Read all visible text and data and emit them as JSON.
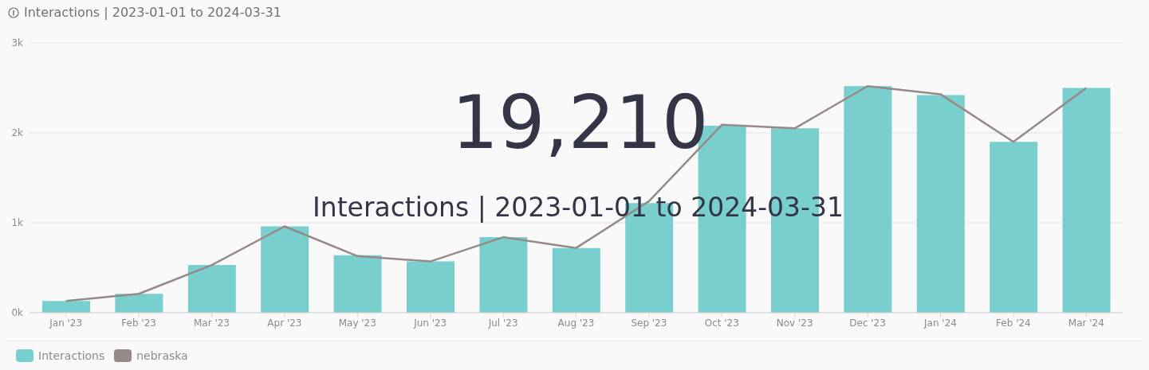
{
  "chart_data": {
    "type": "bar",
    "title": "Interactions | 2023-01-01 to 2024-03-31",
    "annotations": [
      "19,210",
      "Interactions | 2023-01-01 to 2024-03-31"
    ],
    "categories": [
      "Jan '23",
      "Feb '23",
      "Mar '23",
      "Apr '23",
      "May '23",
      "Jun '23",
      "Jul '23",
      "Aug '23",
      "Sep '23",
      "Oct '23",
      "Nov '23",
      "Dec '23",
      "Jan '24",
      "Feb '24",
      "Mar '24"
    ],
    "series": [
      {
        "name": "Interactions",
        "color": "#79cfcd",
        "values": [
          130,
          210,
          530,
          960,
          640,
          570,
          840,
          720,
          1220,
          2080,
          2050,
          2520,
          2420,
          1900,
          2500
        ]
      },
      {
        "name": "nebraska",
        "type": "line",
        "color": "#968a88",
        "values": [
          130,
          210,
          530,
          960,
          630,
          570,
          840,
          720,
          1240,
          2090,
          2050,
          2520,
          2430,
          1900,
          2500
        ]
      }
    ],
    "ylim": [
      0,
      3000
    ],
    "yticks": [
      {
        "value": 0,
        "label": "0k"
      },
      {
        "value": 1000,
        "label": "1k"
      },
      {
        "value": 2000,
        "label": "2k"
      },
      {
        "value": 3000,
        "label": "3k"
      }
    ],
    "grid": "y",
    "legend": "bottom"
  }
}
